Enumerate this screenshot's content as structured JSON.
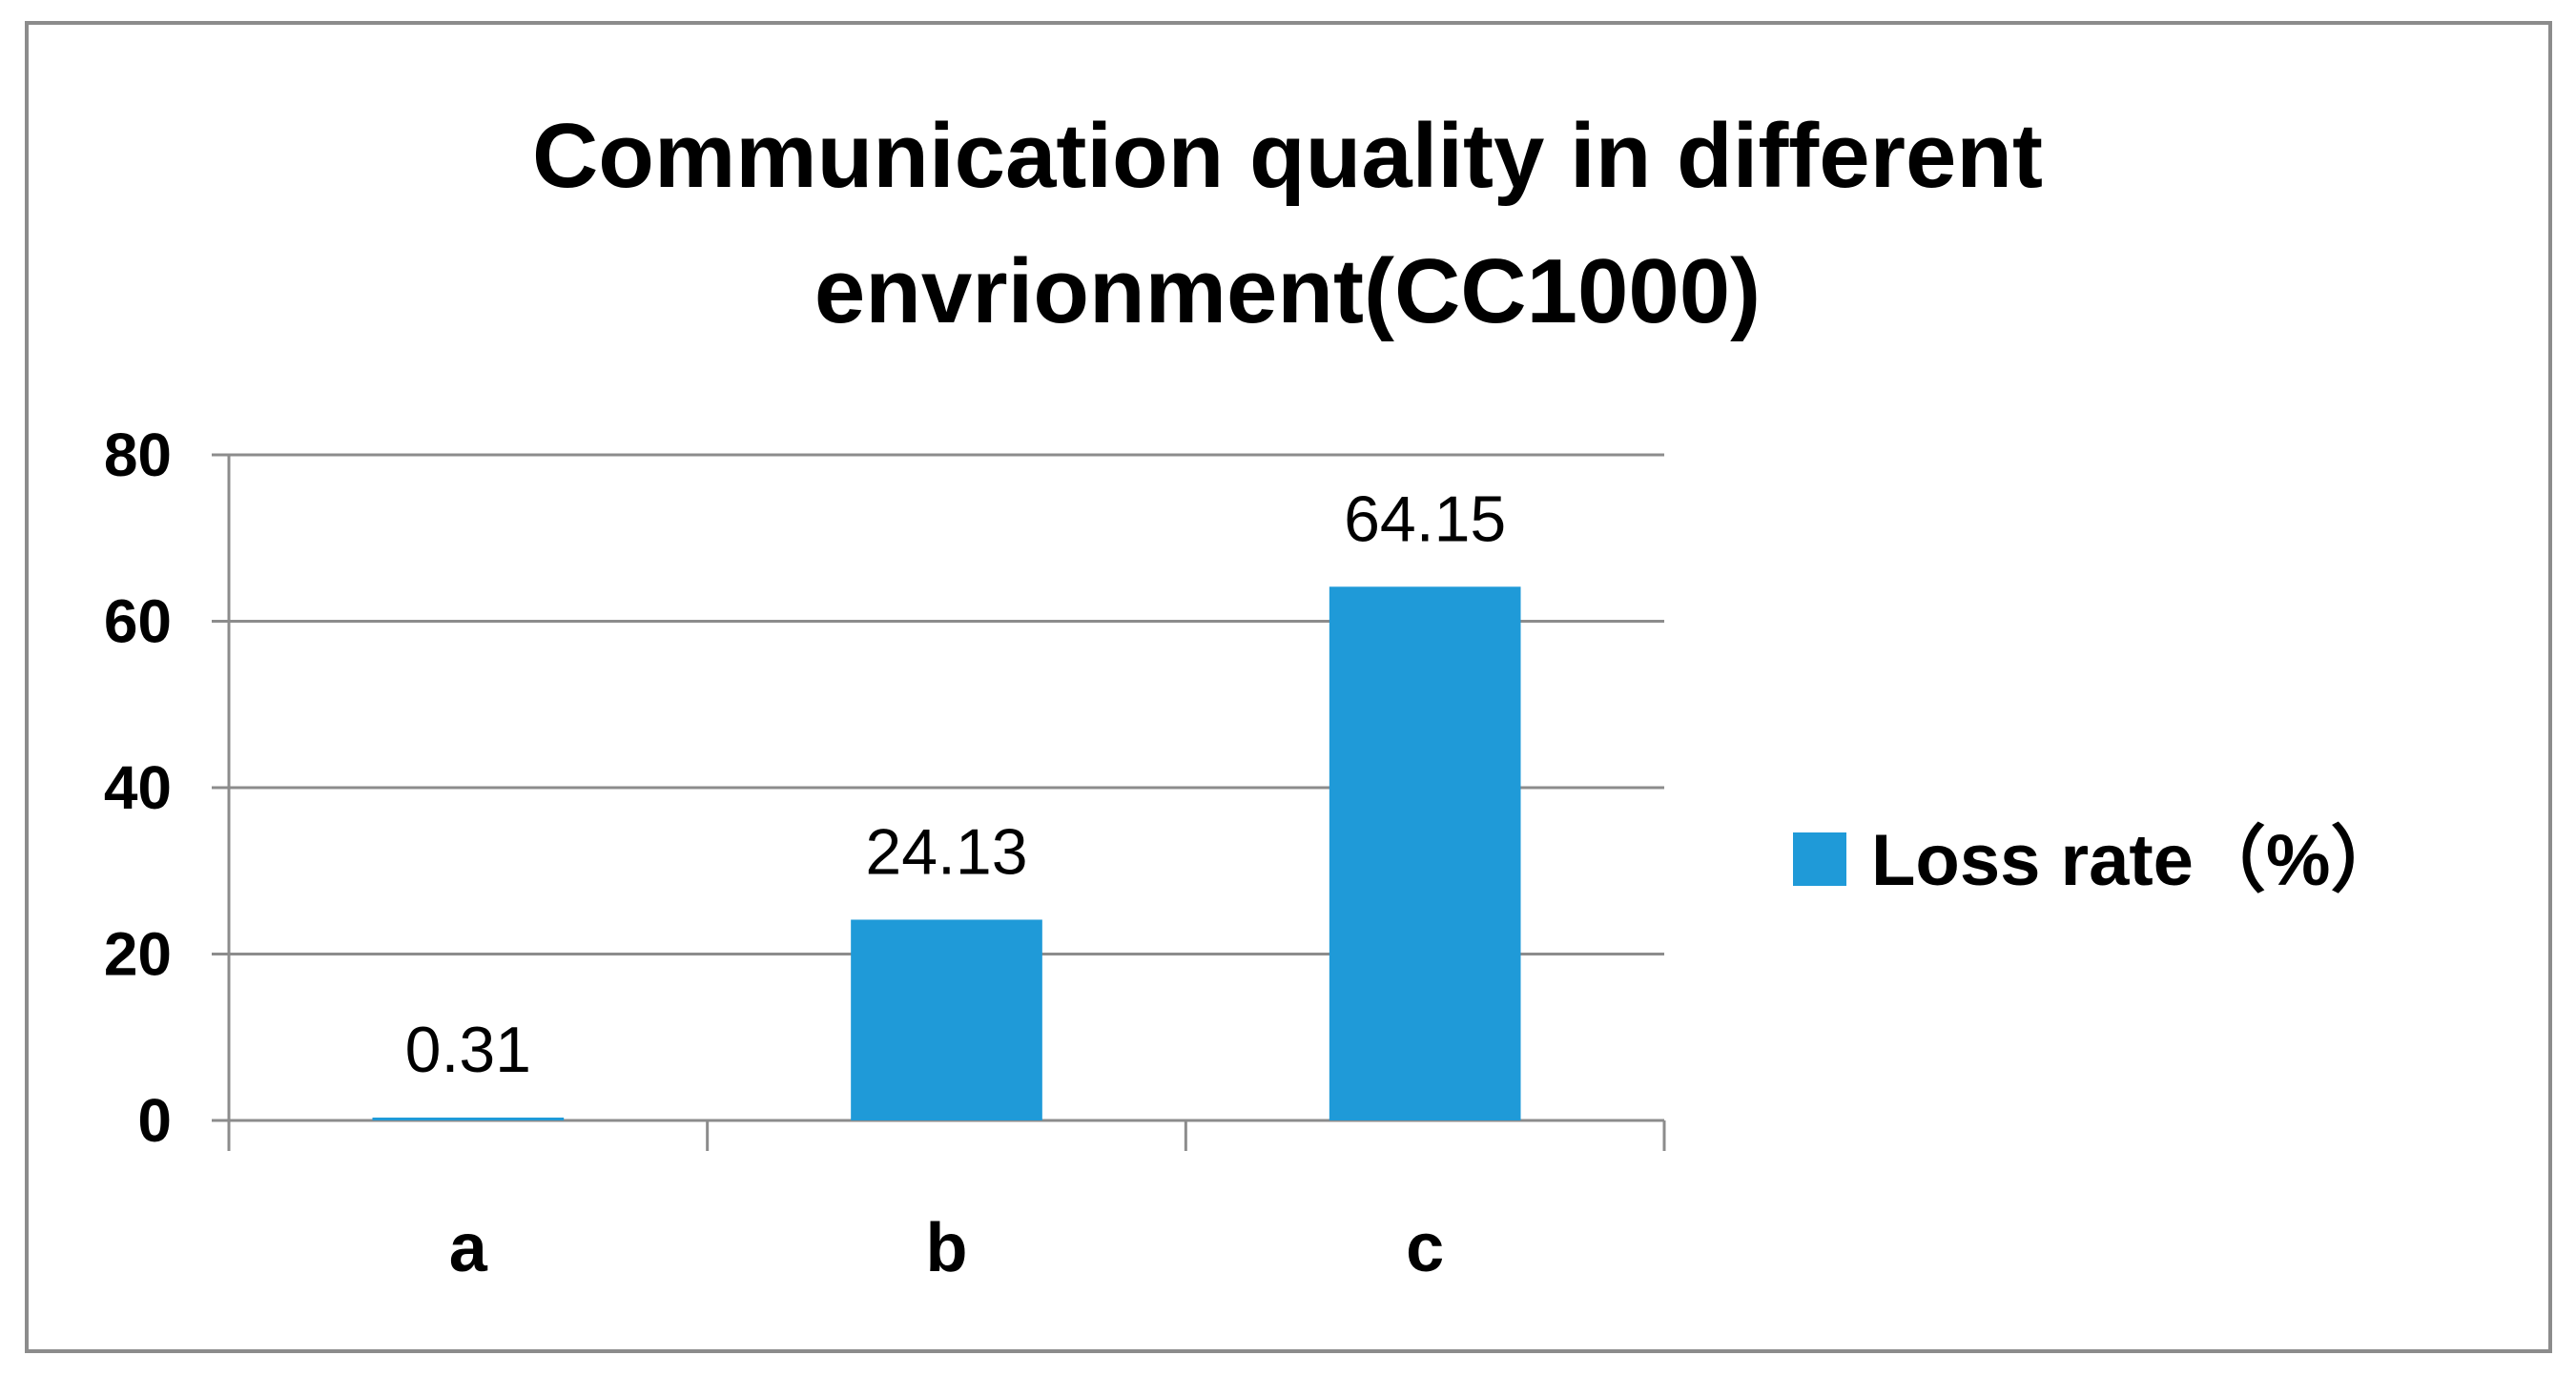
{
  "chart_data": {
    "type": "bar",
    "title_lines": [
      "Communication quality in different",
      "envrionment(CC1000)"
    ],
    "categories": [
      "a",
      "b",
      "c"
    ],
    "series": [
      {
        "name": "Loss rate（%）",
        "values": [
          0.31,
          24.13,
          64.15
        ],
        "data_labels": [
          "0.31",
          "24.13",
          "64.15"
        ]
      }
    ],
    "ylim": [
      0,
      80
    ],
    "yticks": [
      0,
      20,
      40,
      60,
      80
    ],
    "ytick_labels": [
      "0",
      "20",
      "40",
      "60",
      "80"
    ],
    "grid": true,
    "legend_position": "right",
    "colors": {
      "bar": "#1f9ad8",
      "grid": "#8c8c8c",
      "frame": "#8c8c8c"
    }
  }
}
